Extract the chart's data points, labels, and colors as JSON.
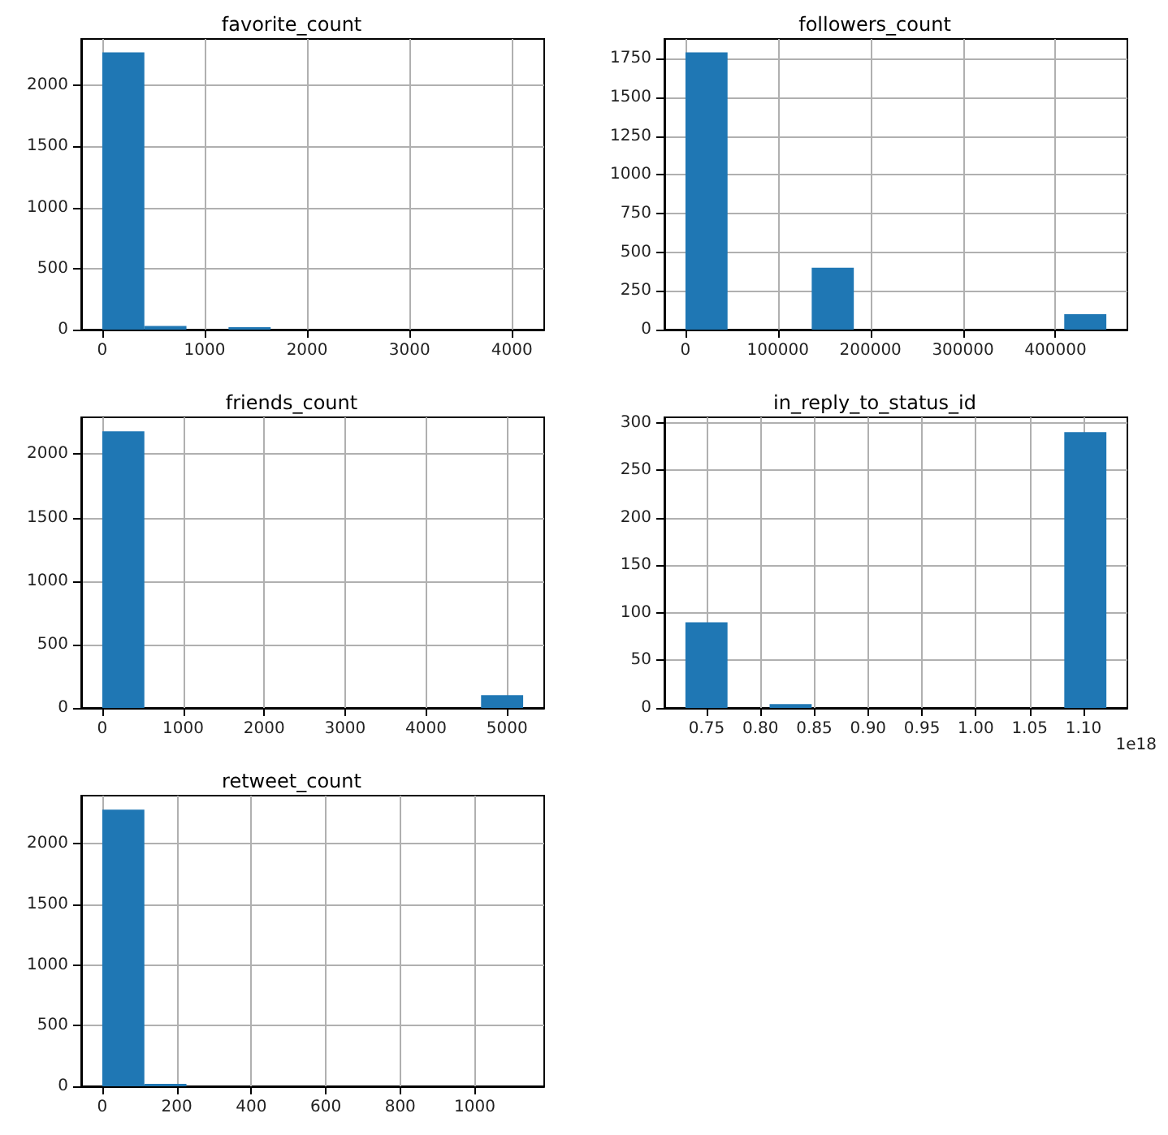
{
  "chart_data": [
    {
      "type": "histogram",
      "title": "favorite_count",
      "bins": [
        0,
        411,
        822,
        1233,
        1644,
        2055,
        2466,
        2877,
        3288,
        3699,
        4110
      ],
      "values": [
        2270,
        30,
        0,
        20,
        0,
        0,
        0,
        0,
        0,
        0
      ],
      "color": "#1f77b4",
      "xlim": [
        -205.5,
        4315.5
      ],
      "ylim": [
        0,
        2380
      ],
      "xticks": [
        0,
        1000,
        2000,
        3000,
        4000
      ],
      "yticks": [
        0,
        500,
        1000,
        1500,
        2000
      ],
      "grid": true
    },
    {
      "type": "histogram",
      "title": "followers_count",
      "bins": [
        0,
        45500,
        91000,
        136500,
        182000,
        227500,
        273000,
        318500,
        364000,
        409500,
        455000
      ],
      "values": [
        1790,
        0,
        0,
        400,
        0,
        0,
        0,
        0,
        0,
        100
      ],
      "color": "#1f77b4",
      "xlim": [
        -22750,
        477750
      ],
      "ylim": [
        0,
        1877
      ],
      "xticks": [
        0,
        100000,
        200000,
        300000,
        400000
      ],
      "yticks": [
        0,
        250,
        500,
        750,
        1000,
        1250,
        1500,
        1750
      ],
      "grid": true
    },
    {
      "type": "histogram",
      "title": "friends_count",
      "bins": [
        0,
        520,
        1040,
        1560,
        2080,
        2600,
        3120,
        3640,
        4160,
        4680,
        5200
      ],
      "values": [
        2180,
        0,
        0,
        0,
        0,
        0,
        0,
        0,
        0,
        100
      ],
      "color": "#1f77b4",
      "xlim": [
        -260,
        5460
      ],
      "ylim": [
        0,
        2290
      ],
      "xticks": [
        0,
        1000,
        2000,
        3000,
        4000,
        5000
      ],
      "yticks": [
        0,
        500,
        1000,
        1500,
        2000
      ],
      "grid": true
    },
    {
      "type": "histogram",
      "title": "in_reply_to_status_id",
      "bins": [
        0.7303,
        0.7694,
        0.8085,
        0.8476,
        0.8867,
        0.9258,
        0.9649,
        1.004,
        1.0431,
        1.0822,
        1.1213
      ],
      "values": [
        90,
        0,
        4,
        0,
        0,
        0,
        0,
        0,
        0,
        290
      ],
      "color": "#1f77b4",
      "xlim": [
        0.7108,
        1.1408
      ],
      "ylim": [
        0,
        305.6
      ],
      "xticks": [
        {
          "value": 0.75,
          "label": "0.75"
        },
        {
          "value": 0.8,
          "label": "0.80"
        },
        {
          "value": 0.85,
          "label": "0.85"
        },
        {
          "value": 0.9,
          "label": "0.90"
        },
        {
          "value": 0.95,
          "label": "0.95"
        },
        {
          "value": 1.0,
          "label": "1.00"
        },
        {
          "value": 1.05,
          "label": "1.05"
        },
        {
          "value": 1.1,
          "label": "1.10"
        }
      ],
      "yticks": [
        0,
        50,
        100,
        150,
        200,
        250,
        300
      ],
      "grid": true,
      "annotations": [
        "1e18"
      ]
    },
    {
      "type": "histogram",
      "title": "retweet_count",
      "bins": [
        0,
        113,
        226,
        339,
        452,
        565,
        678,
        791,
        904,
        1017,
        1130
      ],
      "values": [
        2280,
        20,
        0,
        0,
        0,
        0,
        0,
        0,
        0,
        0
      ],
      "color": "#1f77b4",
      "xlim": [
        -56.5,
        1186.5
      ],
      "ylim": [
        0,
        2395
      ],
      "xticks": [
        0,
        200,
        400,
        600,
        800,
        1000
      ],
      "yticks": [
        0,
        500,
        1000,
        1500,
        2000
      ],
      "grid": true
    }
  ]
}
